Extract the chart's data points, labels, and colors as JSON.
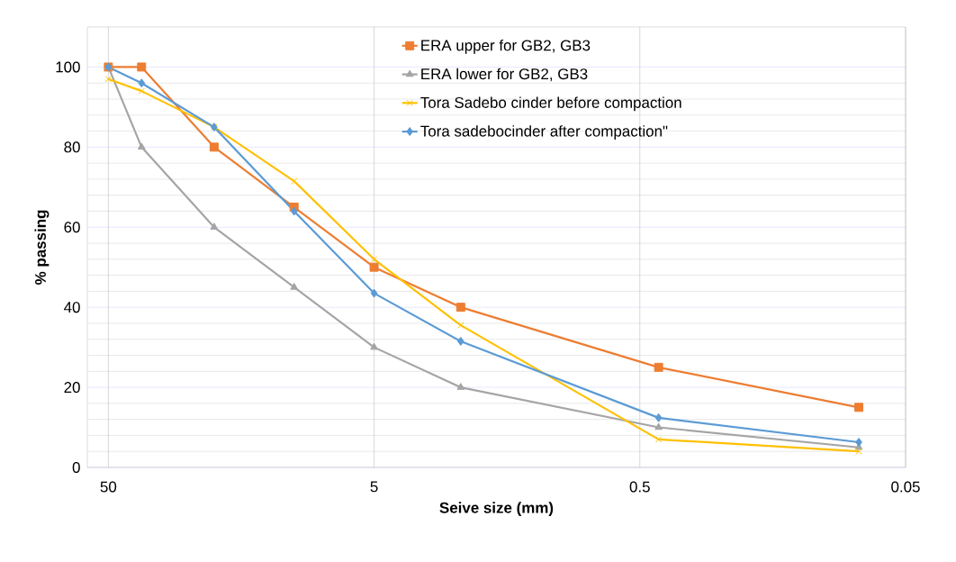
{
  "chart_data": {
    "type": "line",
    "xlabel": "Seive size (mm)",
    "ylabel": "% passing",
    "log": "x",
    "grid": true,
    "legend": "top right",
    "line_style": "solid",
    "xlim": [
      60,
      0.05
    ],
    "xticks": [
      50,
      5,
      0.5,
      0.05
    ],
    "ylim": [
      0,
      110
    ],
    "yticks": [
      0,
      20,
      40,
      60,
      80,
      100
    ],
    "x": [
      50,
      37.5,
      20,
      10,
      5,
      2.36,
      0.425,
      0.075
    ],
    "series": [
      {
        "name": "ERA upper for GB2, GB3",
        "color": "#ed7d31",
        "marker": "square",
        "values": [
          100,
          100,
          80,
          65,
          50,
          40,
          25,
          15
        ]
      },
      {
        "name": "ERA lower for GB2, GB3",
        "color": "#a5a5a5",
        "marker": "triangle",
        "values": [
          100,
          80,
          60,
          45,
          30,
          20,
          10,
          5
        ]
      },
      {
        "name": "Tora Sadebo cinder before compaction",
        "color": "#ffc000",
        "marker": "cross",
        "values": [
          97,
          94,
          85,
          71.5,
          52,
          35.5,
          7,
          4
        ]
      },
      {
        "name": "Tora sadebocinder after compaction\"",
        "color": "#5b9bd5",
        "marker": "diamond",
        "values": [
          100,
          96,
          85,
          64,
          43.5,
          31.5,
          12.4,
          6.3
        ]
      }
    ]
  }
}
